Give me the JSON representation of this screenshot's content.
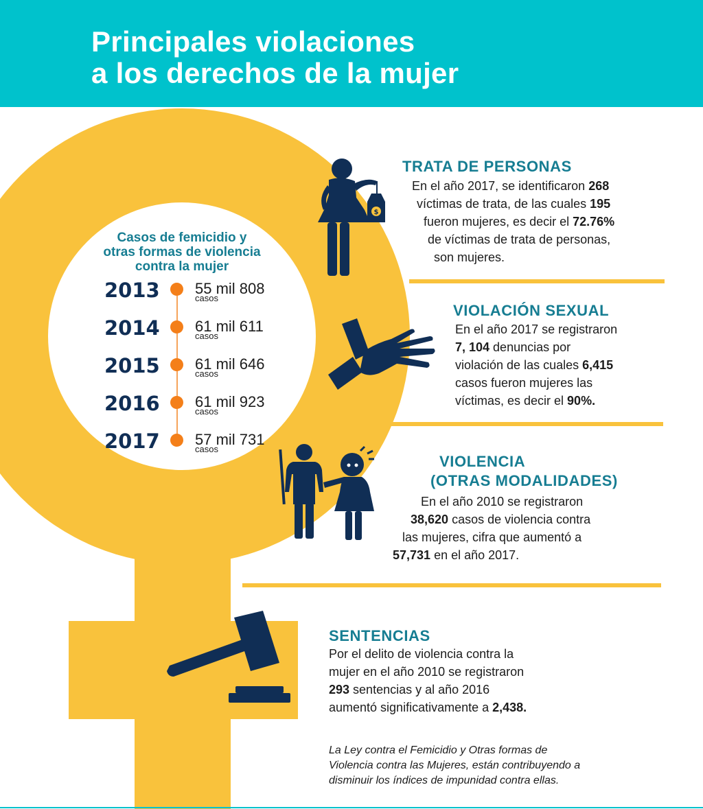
{
  "header": {
    "title_line1": "Principales violaciones",
    "title_line2": "a los derechos de la mujer"
  },
  "colors": {
    "header_bg": "#00c2cc",
    "symbol": "#f9c23c",
    "accent_title": "#167d92",
    "dot": "#f47f19",
    "icon": "#102e55"
  },
  "timeline": {
    "title_line1": "Casos de femicidio y",
    "title_line2": "otras formas de violencia",
    "title_line3": "contra la mujer",
    "unit": "casos",
    "entries": [
      {
        "year": "2013",
        "value": "55 mil 808"
      },
      {
        "year": "2014",
        "value": "61 mil 611"
      },
      {
        "year": "2015",
        "value": "61 mil 646"
      },
      {
        "year": "2016",
        "value": "61 mil 923"
      },
      {
        "year": "2017",
        "value": "57 mil 731"
      }
    ]
  },
  "trata": {
    "title": "TRATA DE PERSONAS",
    "l1a": "En el año 2017, se identificaron ",
    "l1b": "268",
    "l2a": "víctimas de trata, de las cuales ",
    "l2b": "195",
    "l3a": "fueron mujeres, es decir el ",
    "l3b": "72.76%",
    "l4": "de víctimas de trata de personas,",
    "l5": "son mujeres."
  },
  "violacion": {
    "title": "VIOLACIÓN SEXUAL",
    "l1": "En el año 2017 se registraron",
    "l2a": "7, 104",
    "l2b": " denuncias por",
    "l3a": "violación de las cuales ",
    "l3b": "6,415",
    "l4": "casos fueron mujeres las",
    "l5a": "víctimas, es decir el ",
    "l5b": "90%."
  },
  "violencia": {
    "title_line1": "VIOLENCIA",
    "title_line2": "(OTRAS MODALIDADES)",
    "l1": "En el año 2010 se registraron",
    "l2a": "38,620",
    "l2b": " casos de violencia contra",
    "l3": "las mujeres, cifra que aumentó a",
    "l4a": "57,731",
    "l4b": " en el año 2017."
  },
  "sentencias": {
    "title": "SENTENCIAS",
    "l1": "Por el delito de violencia contra la",
    "l2": "mujer en el año 2010 se registraron",
    "l3a": "293",
    "l3b": " sentencias y al año 2016",
    "l4a": "aumentó significativamente a ",
    "l4b": "2,438."
  },
  "footnote": {
    "l1": "La Ley contra el Femicidio y Otras formas de",
    "l2": "Violencia contra las Mujeres, están contribuyendo a",
    "l3": "disminuir los índices de impunidad contra ellas."
  },
  "icons": [
    "woman-price-tag-icon",
    "grabbing-hand-icon",
    "man-child-violence-icon",
    "gavel-icon"
  ]
}
